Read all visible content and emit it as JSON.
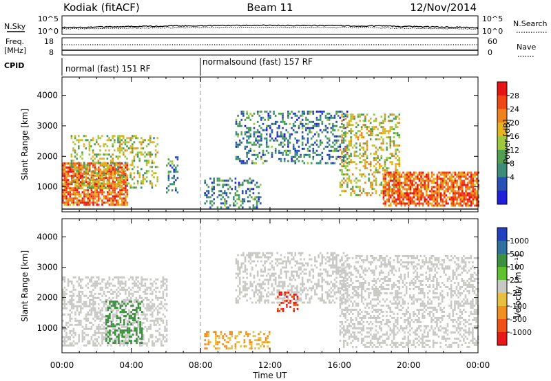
{
  "header": {
    "station": "Kodiak (fitACF)",
    "beam": "Beam 11",
    "date": "12/Nov/2014"
  },
  "top_panels": {
    "nsky_label": "N.Sky",
    "nsky_ticks": [
      "10^5",
      "10^0"
    ],
    "nsearch_label": "N.Search",
    "nsearch_ticks": [
      "10^5",
      "10^0"
    ],
    "freq_label": "Freq.",
    "freq_unit": "[MHz]",
    "freq_ticks": [
      "18",
      "8"
    ],
    "nave_label": "Nave",
    "nave_ticks": [
      "60",
      "0"
    ],
    "cpid_label": "CPID",
    "cpid_segments": [
      {
        "label": "normal (fast) 151 RF",
        "start_h": 0,
        "end_h": 8
      },
      {
        "label": "normalsound (fast) 157 RF",
        "start_h": 8,
        "end_h": 24
      }
    ]
  },
  "x_axis": {
    "label": "Time UT",
    "range_h": [
      0,
      24
    ],
    "tick_labels": [
      "00:00",
      "04:00",
      "08:00",
      "12:00",
      "16:00",
      "20:00",
      "00:00"
    ]
  },
  "power_panel": {
    "ylabel": "Slant Range [km]",
    "ylim_km": [
      180,
      4600
    ],
    "y_tick_labels": [
      "1000",
      "2000",
      "3000",
      "4000"
    ],
    "colorbar_label": "Power [dB]",
    "colorbar_ticks": [
      "4",
      "8",
      "12",
      "16",
      "20",
      "24",
      "28"
    ],
    "colorbar_colors": [
      "#1e1edc",
      "#2850b4",
      "#3c8c78",
      "#50a050",
      "#a0c83c",
      "#e6b41e",
      "#f0821e",
      "#f04614",
      "#e61414"
    ]
  },
  "velocity_panel": {
    "ylabel": "Slant Range [km]",
    "ylim_km": [
      180,
      4600
    ],
    "y_tick_labels": [
      "1000",
      "2000",
      "3000",
      "4000"
    ],
    "colorbar_label": "Velocity [m s⁻¹]",
    "colorbar_ticks": [
      "1000",
      "500",
      "100",
      "25",
      "-25",
      "-100",
      "-500",
      "-1000"
    ],
    "colorbar_colors": [
      "#2040c0",
      "#3070a0",
      "#3c9040",
      "#60c030",
      "#c8c8c4",
      "#e8c040",
      "#f09020",
      "#f05018",
      "#e81818"
    ]
  },
  "chart_data": {
    "type": "heatmap",
    "x_unit": "hours UT",
    "y_unit": "km",
    "power_regions": [
      {
        "region": "dusk near-range band",
        "t_start": 0.0,
        "t_end": 3.8,
        "r_min": 400,
        "r_max": 1800,
        "typical_power_db": 26
      },
      {
        "region": "dusk oblique streaks",
        "t_start": 0.5,
        "t_end": 5.5,
        "r_min": 1000,
        "r_max": 2700,
        "typical_power_db": 16
      },
      {
        "region": "evening patch",
        "t_start": 6.0,
        "t_end": 6.7,
        "r_min": 800,
        "r_max": 2000,
        "typical_power_db": 8
      },
      {
        "region": "post-midnight weak echoes",
        "t_start": 8.2,
        "t_end": 11.5,
        "r_min": 300,
        "r_max": 1300,
        "typical_power_db": 8
      },
      {
        "region": "far-range arc",
        "t_start": 10.0,
        "t_end": 16.5,
        "r_min": 1800,
        "r_max": 3500,
        "typical_power_db": 8
      },
      {
        "region": "dawn arc",
        "t_start": 16.0,
        "t_end": 19.5,
        "r_min": 700,
        "r_max": 3400,
        "typical_power_db": 18
      },
      {
        "region": "day near-range band",
        "t_start": 18.5,
        "t_end": 24.0,
        "r_min": 400,
        "r_max": 1500,
        "typical_power_db": 26
      }
    ],
    "velocity_regions": [
      {
        "region": "dusk ground scatter",
        "t_start": 0.0,
        "t_end": 6.0,
        "r_min": 400,
        "r_max": 2700,
        "typical_velocity_ms": 0
      },
      {
        "region": "dusk positive flow",
        "t_start": 2.5,
        "t_end": 4.6,
        "r_min": 500,
        "r_max": 1900,
        "typical_velocity_ms": 300
      },
      {
        "region": "post-midnight near-range",
        "t_start": 8.2,
        "t_end": 12.0,
        "r_min": 300,
        "r_max": 900,
        "typical_velocity_ms": -100
      },
      {
        "region": "far-range arc",
        "t_start": 10.0,
        "t_end": 16.5,
        "r_min": 1800,
        "r_max": 3500,
        "typical_velocity_ms": 0
      },
      {
        "region": "negative flow patch",
        "t_start": 12.4,
        "t_end": 13.6,
        "r_min": 1550,
        "r_max": 2200,
        "typical_velocity_ms": -1000
      },
      {
        "region": "dawn arc and day band",
        "t_start": 16.0,
        "t_end": 24.0,
        "r_min": 400,
        "r_max": 3400,
        "typical_velocity_ms": 0
      }
    ]
  }
}
